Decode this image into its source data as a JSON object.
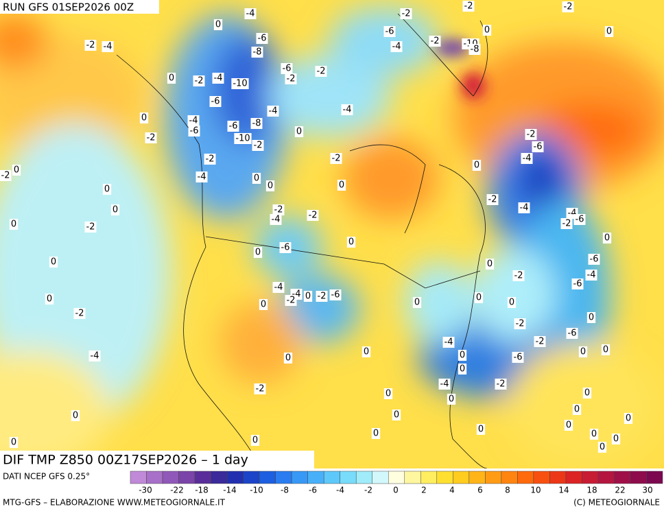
{
  "header": {
    "title": "RUN GFS 01SEP2026 00Z"
  },
  "map": {
    "title": "DIF TMP Z850 00Z17SEP2026 – 1 day",
    "contour_labels": [
      "-4",
      "0",
      "-2",
      "-2",
      "-2",
      "0",
      "0",
      "-6",
      "-2",
      "-4",
      "-10",
      "-8",
      "-2",
      "-4",
      "-6",
      "-8",
      "-6",
      "-2",
      "-2",
      "-4",
      "-2",
      "0",
      "-10",
      "-6",
      "-4",
      "-4",
      "0",
      "-4",
      "-6",
      "-6",
      "-8",
      "-10",
      "-2",
      "0",
      "-2",
      "-2",
      "-2",
      "0",
      "-2",
      "-6",
      "-4",
      "-2",
      "0",
      "-4",
      "0",
      "0",
      "0",
      "0",
      "0",
      "-2",
      "-4",
      "-2",
      "-2",
      "-4",
      "-4",
      "-2",
      "-6",
      "0",
      "-2",
      "0",
      "0",
      "-6",
      "0",
      "-6",
      "0",
      "0",
      "-2",
      "-4",
      "-6",
      "-4",
      "-4",
      "-2",
      "0",
      "-2",
      "-6",
      "0",
      "0",
      "0",
      "0",
      "0",
      "-2",
      "0",
      "-2",
      "-4",
      "-2",
      "-6",
      "0",
      "-6",
      "-4",
      "0",
      "0",
      "0",
      "0",
      "0",
      "-4",
      "-2",
      "-2",
      "0",
      "0",
      "0",
      "0",
      "0",
      "0",
      "0",
      "0",
      "0",
      "0",
      "0",
      "0",
      "0",
      "0",
      "0",
      "0"
    ]
  },
  "legend": {
    "source": "DATI NCEP GFS 0.25°",
    "labels": [
      "-30",
      "-22",
      "-18",
      "-14",
      "-10",
      "-8",
      "-6",
      "-4",
      "-2",
      "0",
      "2",
      "4",
      "6",
      "8",
      "10",
      "14",
      "18",
      "22",
      "30"
    ]
  },
  "footer": {
    "left": "MTG-GFS – ELABORAZIONE WWW.METEOGIORNALE.IT",
    "right": "(C) METEOGIORNALE"
  }
}
